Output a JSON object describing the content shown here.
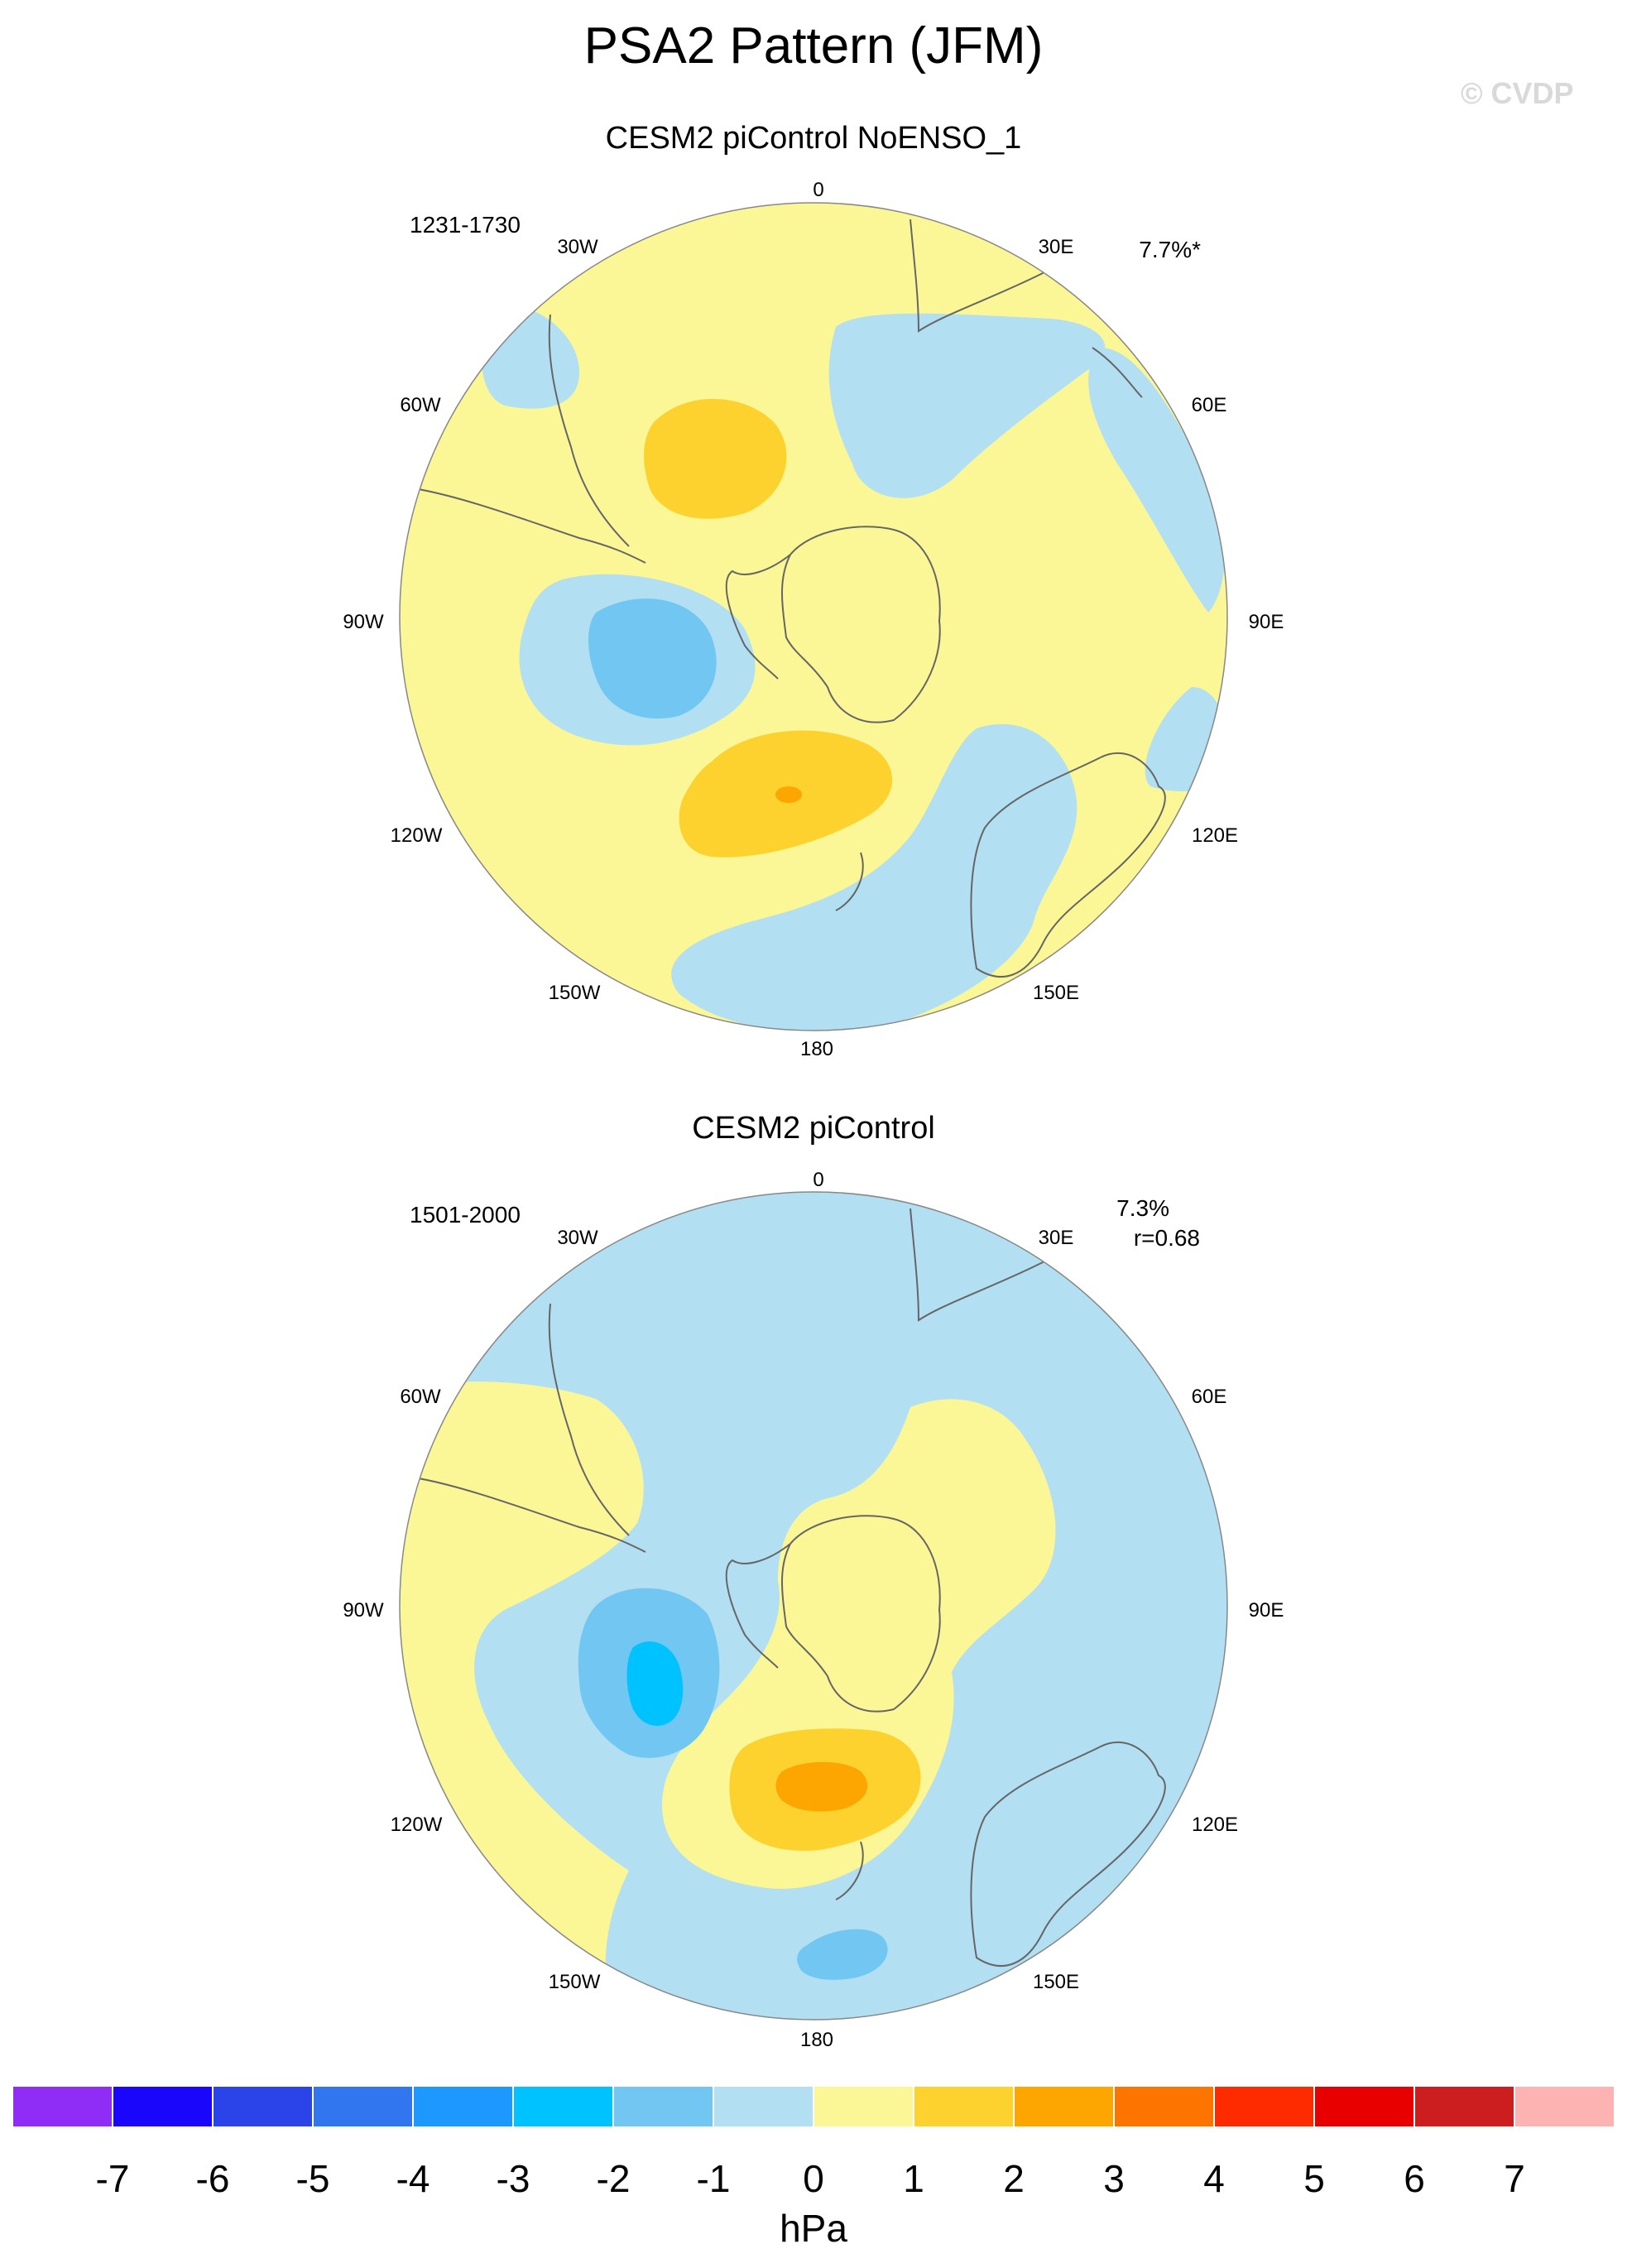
{
  "title": "PSA2 Pattern (JFM)",
  "watermark": "© CVDP",
  "panels": [
    {
      "title": "CESM2 piControl NoENSO_1",
      "years": "1231-1730",
      "stat_line1": "7.7%*",
      "stat_line2": "",
      "longitude_labels": [
        "0",
        "30E",
        "60E",
        "90E",
        "120E",
        "150E",
        "180",
        "150W",
        "120W",
        "90W",
        "60W",
        "30W"
      ]
    },
    {
      "title": "CESM2 piControl",
      "years": "1501-2000",
      "stat_line1": "7.3%",
      "stat_line2": "r=0.68",
      "longitude_labels": [
        "0",
        "30E",
        "60E",
        "90E",
        "120E",
        "150E",
        "180",
        "150W",
        "120W",
        "90W",
        "60W",
        "30W"
      ]
    }
  ],
  "colorbar": {
    "units": "hPa",
    "labels": [
      "-7",
      "-6",
      "-5",
      "-4",
      "-3",
      "-2",
      "-1",
      "0",
      "1",
      "2",
      "3",
      "4",
      "5",
      "6",
      "7"
    ],
    "colors": [
      "#8f2cf5",
      "#1a06fb",
      "#2b44ea",
      "#3176ee",
      "#1d98ff",
      "#00c2ff",
      "#72c7f2",
      "#b2dff2",
      "#fcf796",
      "#fed22e",
      "#fda500",
      "#fe7400",
      "#fe2a00",
      "#e80000",
      "#cc1e1e",
      "#feb3b3"
    ]
  }
}
